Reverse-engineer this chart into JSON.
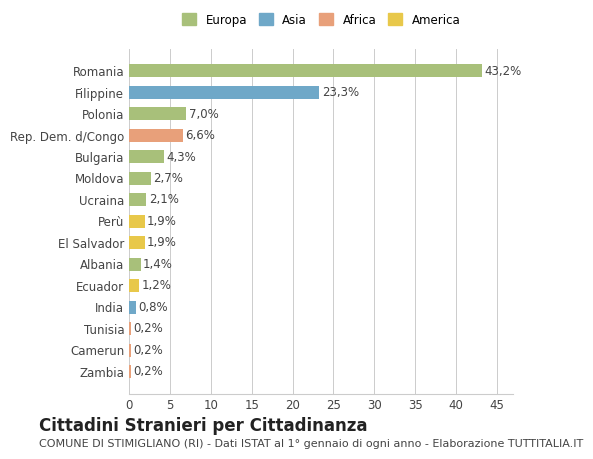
{
  "categories": [
    "Romania",
    "Filippine",
    "Polonia",
    "Rep. Dem. d/Congo",
    "Bulgaria",
    "Moldova",
    "Ucraina",
    "Perù",
    "El Salvador",
    "Albania",
    "Ecuador",
    "India",
    "Tunisia",
    "Camerun",
    "Zambia"
  ],
  "values": [
    43.2,
    23.3,
    7.0,
    6.6,
    4.3,
    2.7,
    2.1,
    1.9,
    1.9,
    1.4,
    1.2,
    0.8,
    0.2,
    0.2,
    0.2
  ],
  "labels": [
    "43,2%",
    "23,3%",
    "7,0%",
    "6,6%",
    "4,3%",
    "2,7%",
    "2,1%",
    "1,9%",
    "1,9%",
    "1,4%",
    "1,2%",
    "0,8%",
    "0,2%",
    "0,2%",
    "0,2%"
  ],
  "continents": [
    "Europa",
    "Asia",
    "Europa",
    "Africa",
    "Europa",
    "Europa",
    "Europa",
    "America",
    "America",
    "Europa",
    "America",
    "Asia",
    "Africa",
    "Africa",
    "Africa"
  ],
  "continent_colors": {
    "Europa": "#a8c07a",
    "Asia": "#6fa8c8",
    "Africa": "#e8a07a",
    "America": "#e8c84a"
  },
  "legend_order": [
    "Europa",
    "Asia",
    "Africa",
    "America"
  ],
  "title": "Cittadini Stranieri per Cittadinanza",
  "subtitle": "COMUNE DI STIMIGLIANO (RI) - Dati ISTAT al 1° gennaio di ogni anno - Elaborazione TUTTITALIA.IT",
  "xlim": [
    0,
    47
  ],
  "xticks": [
    0,
    5,
    10,
    15,
    20,
    25,
    30,
    35,
    40,
    45
  ],
  "bg_color": "#ffffff",
  "grid_color": "#cccccc",
  "bar_height": 0.6,
  "label_fontsize": 8.5,
  "tick_fontsize": 8.5,
  "title_fontsize": 12,
  "subtitle_fontsize": 8
}
